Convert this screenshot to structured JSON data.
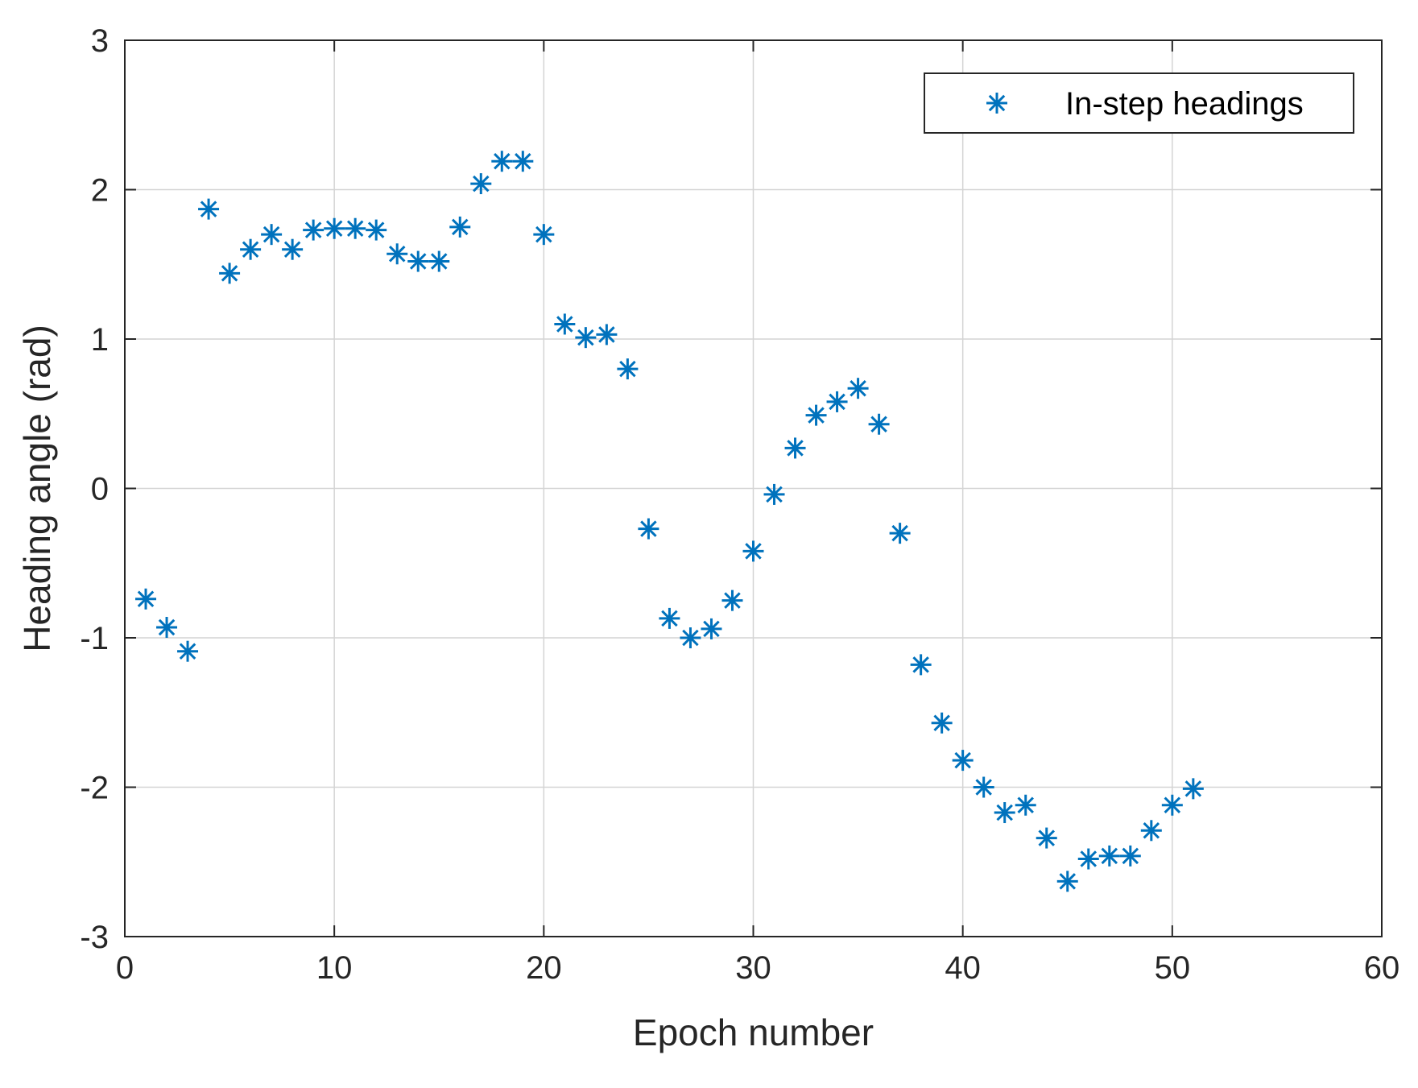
{
  "chart_data": {
    "type": "scatter",
    "xlabel": "Epoch number",
    "ylabel": "Heading angle (rad)",
    "xlim": [
      0,
      60
    ],
    "ylim": [
      -3,
      3
    ],
    "xticks": [
      0,
      10,
      20,
      30,
      40,
      50,
      60
    ],
    "yticks": [
      -3,
      -2,
      -1,
      0,
      1,
      2,
      3
    ],
    "grid": true,
    "legend_position": "top-right",
    "series": [
      {
        "name": "In-step headings",
        "marker": "asterisk",
        "color": "#0072bd",
        "x": [
          1,
          2,
          3,
          4,
          5,
          6,
          7,
          8,
          9,
          10,
          11,
          12,
          13,
          14,
          15,
          16,
          17,
          18,
          19,
          20,
          21,
          22,
          23,
          24,
          25,
          26,
          27,
          28,
          29,
          30,
          31,
          32,
          33,
          34,
          35,
          36,
          37,
          38,
          39,
          40,
          41,
          42,
          43,
          44,
          45,
          46,
          47,
          48,
          49,
          50,
          51
        ],
        "y": [
          -0.74,
          -0.93,
          -1.09,
          1.87,
          1.44,
          1.6,
          1.7,
          1.6,
          1.73,
          1.74,
          1.74,
          1.73,
          1.57,
          1.52,
          1.52,
          1.75,
          2.04,
          2.19,
          2.19,
          1.7,
          1.1,
          1.01,
          1.03,
          0.8,
          -0.27,
          -0.87,
          -1.0,
          -0.94,
          -0.75,
          -0.42,
          -0.04,
          0.27,
          0.49,
          0.58,
          0.67,
          0.43,
          -0.3,
          -1.18,
          -1.57,
          -1.82,
          -2.0,
          -2.17,
          -2.12,
          -2.34,
          -2.63,
          -2.48,
          -2.46,
          -2.46,
          -2.29,
          -2.12,
          -2.01
        ]
      }
    ]
  }
}
